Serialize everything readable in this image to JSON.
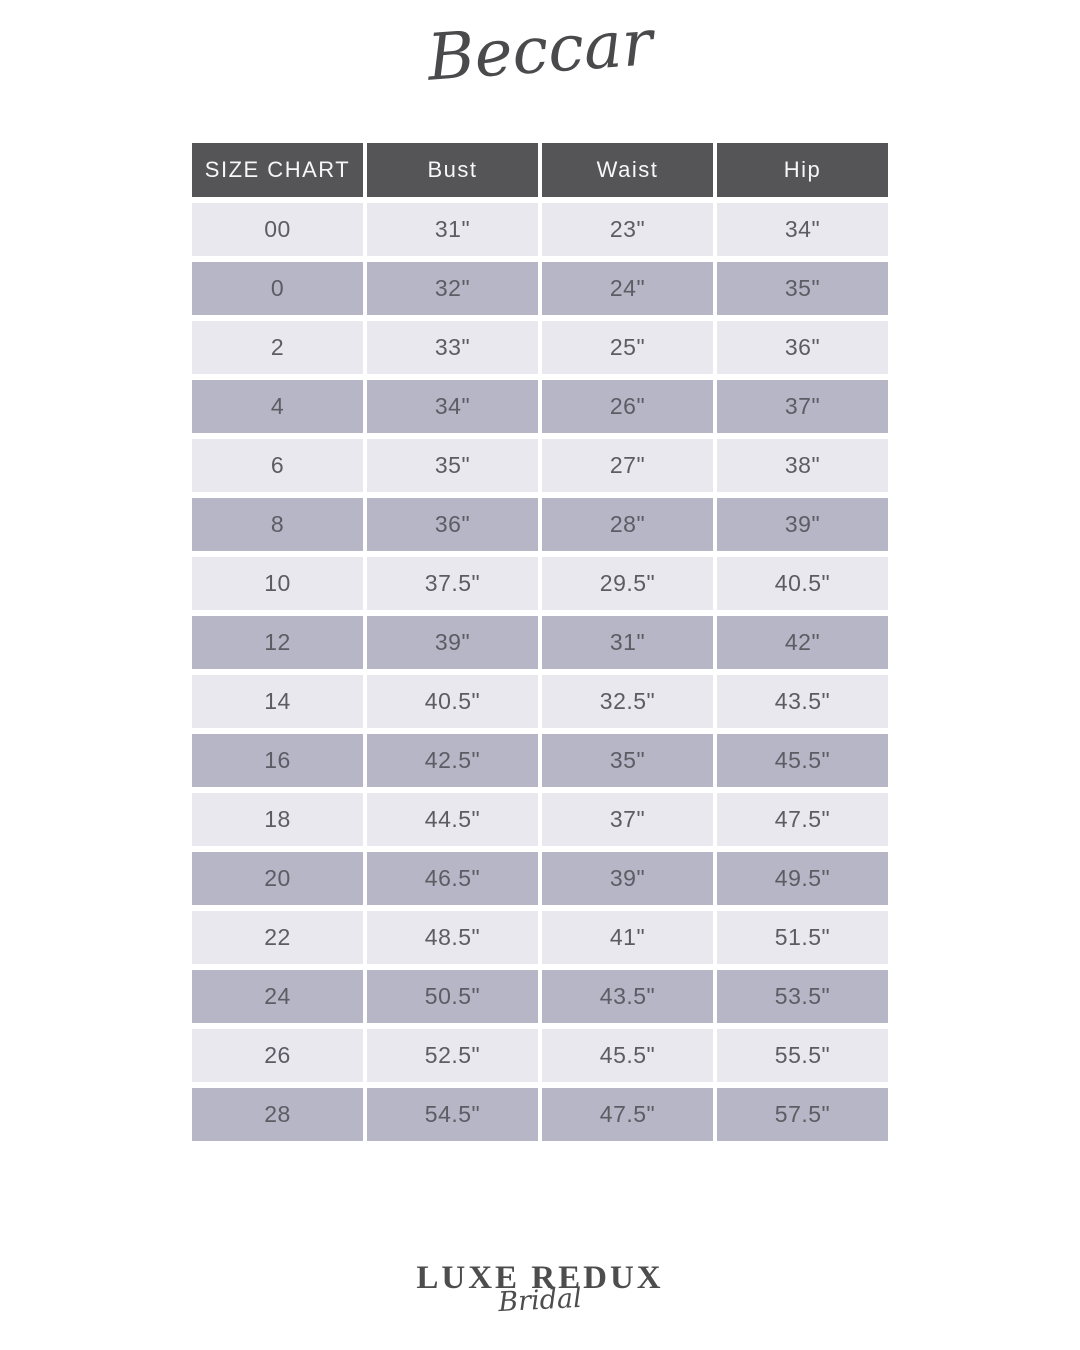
{
  "brand": {
    "logo_text": "Beccar"
  },
  "table": {
    "headers": [
      "SIZE CHART",
      "Bust",
      "Waist",
      "Hip"
    ],
    "rows": [
      [
        "00",
        "31\"",
        "23\"",
        "34\""
      ],
      [
        "0",
        "32\"",
        "24\"",
        "35\""
      ],
      [
        "2",
        "33\"",
        "25\"",
        "36\""
      ],
      [
        "4",
        "34\"",
        "26\"",
        "37\""
      ],
      [
        "6",
        "35\"",
        "27\"",
        "38\""
      ],
      [
        "8",
        "36\"",
        "28\"",
        "39\""
      ],
      [
        "10",
        "37.5\"",
        "29.5\"",
        "40.5\""
      ],
      [
        "12",
        "39\"",
        "31\"",
        "42\""
      ],
      [
        "14",
        "40.5\"",
        "32.5\"",
        "43.5\""
      ],
      [
        "16",
        "42.5\"",
        "35\"",
        "45.5\""
      ],
      [
        "18",
        "44.5\"",
        "37\"",
        "47.5\""
      ],
      [
        "20",
        "46.5\"",
        "39\"",
        "49.5\""
      ],
      [
        "22",
        "48.5\"",
        "41\"",
        "51.5\""
      ],
      [
        "24",
        "50.5\"",
        "43.5\"",
        "53.5\""
      ],
      [
        "26",
        "52.5\"",
        "45.5\"",
        "55.5\""
      ],
      [
        "28",
        "54.5\"",
        "47.5\"",
        "57.5\""
      ]
    ]
  },
  "footer": {
    "logo_primary": "LUXE REDUX",
    "logo_secondary": "Bridal"
  },
  "colors": {
    "header_bg": "#555456",
    "header_text": "#f7f7f7",
    "row_light": "#e9e8ef",
    "row_dark": "#b7b6c6",
    "cell_text": "#5d5c64",
    "logo_text": "#4a4a4c"
  },
  "chart_data": {
    "type": "table",
    "title": "SIZE CHART",
    "columns": [
      "SIZE CHART",
      "Bust",
      "Waist",
      "Hip"
    ],
    "rows": [
      [
        "00",
        "31\"",
        "23\"",
        "34\""
      ],
      [
        "0",
        "32\"",
        "24\"",
        "35\""
      ],
      [
        "2",
        "33\"",
        "25\"",
        "36\""
      ],
      [
        "4",
        "34\"",
        "26\"",
        "37\""
      ],
      [
        "6",
        "35\"",
        "27\"",
        "38\""
      ],
      [
        "8",
        "36\"",
        "28\"",
        "39\""
      ],
      [
        "10",
        "37.5\"",
        "29.5\"",
        "40.5\""
      ],
      [
        "12",
        "39\"",
        "31\"",
        "42\""
      ],
      [
        "14",
        "40.5\"",
        "32.5\"",
        "43.5\""
      ],
      [
        "16",
        "42.5\"",
        "35\"",
        "45.5\""
      ],
      [
        "18",
        "44.5\"",
        "37\"",
        "47.5\""
      ],
      [
        "20",
        "46.5\"",
        "39\"",
        "49.5\""
      ],
      [
        "22",
        "48.5\"",
        "41\"",
        "51.5\""
      ],
      [
        "24",
        "50.5\"",
        "43.5\"",
        "53.5\""
      ],
      [
        "26",
        "52.5\"",
        "45.5\"",
        "55.5\""
      ],
      [
        "28",
        "54.5\"",
        "47.5\"",
        "57.5\""
      ]
    ]
  }
}
